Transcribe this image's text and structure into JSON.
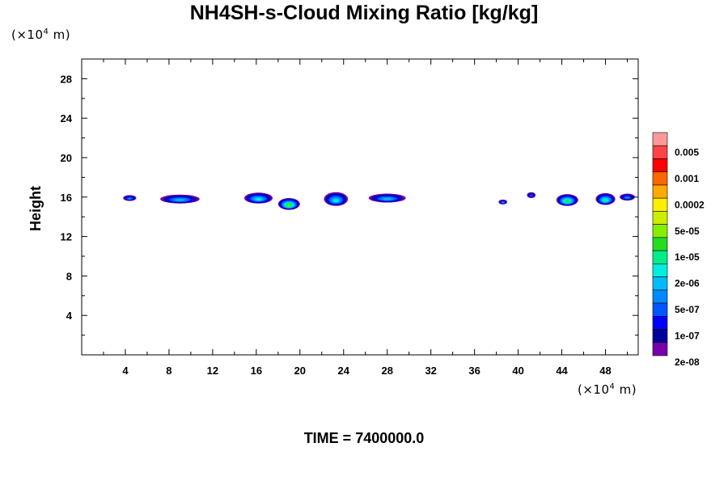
{
  "chart_data": {
    "type": "contour",
    "title": "NH4SH-s-Cloud Mixing Ratio [kg/kg]",
    "ylabel": "Height",
    "y_unit": {
      "prefix": "(×10",
      "exp": "4",
      "suffix": " m)"
    },
    "x_unit": {
      "prefix": "(×10",
      "exp": "4",
      "suffix": " m)"
    },
    "xlim": [
      0,
      51
    ],
    "ylim": [
      0,
      30
    ],
    "x_ticks": [
      4,
      8,
      12,
      16,
      20,
      24,
      28,
      32,
      36,
      40,
      44,
      48
    ],
    "y_ticks": [
      4,
      8,
      12,
      16,
      20,
      24,
      28
    ],
    "grid": false,
    "legend": {
      "position": "right",
      "labels": [
        "0.005",
        "0.001",
        "0.0002",
        "5e-05",
        "1e-05",
        "2e-06",
        "5e-07",
        "1e-07",
        "2e-08"
      ],
      "colors": [
        "#ff9999",
        "#ff4444",
        "#ff0000",
        "#ff6600",
        "#ffaa00",
        "#ffee00",
        "#ccee00",
        "#88ee00",
        "#22dd22",
        "#00ee88",
        "#00eedd",
        "#00bbff",
        "#0088ff",
        "#0055ff",
        "#0000ff",
        "#000099",
        "#7700aa"
      ]
    },
    "cloud_patches": [
      {
        "x": 4.4,
        "y": 15.9,
        "w": 1.2,
        "h": 0.6,
        "max_color": "#0088ff"
      },
      {
        "x": 9.0,
        "y": 15.8,
        "w": 3.6,
        "h": 0.9,
        "max_color": "#00bbff"
      },
      {
        "x": 16.2,
        "y": 15.9,
        "w": 2.6,
        "h": 1.1,
        "max_color": "#00eedd"
      },
      {
        "x": 19.0,
        "y": 15.3,
        "w": 2.0,
        "h": 1.2,
        "max_color": "#88ee00"
      },
      {
        "x": 23.3,
        "y": 15.8,
        "w": 2.2,
        "h": 1.4,
        "max_color": "#00eedd"
      },
      {
        "x": 28.0,
        "y": 15.9,
        "w": 3.4,
        "h": 0.9,
        "max_color": "#00bbff"
      },
      {
        "x": 38.6,
        "y": 15.5,
        "w": 0.8,
        "h": 0.5,
        "max_color": "#0088ff"
      },
      {
        "x": 41.2,
        "y": 16.2,
        "w": 0.8,
        "h": 0.6,
        "max_color": "#0055ff"
      },
      {
        "x": 44.5,
        "y": 15.7,
        "w": 2.0,
        "h": 1.2,
        "max_color": "#22dd22"
      },
      {
        "x": 48.0,
        "y": 15.8,
        "w": 1.8,
        "h": 1.2,
        "max_color": "#00ee88"
      },
      {
        "x": 50.0,
        "y": 16.0,
        "w": 1.4,
        "h": 0.7,
        "max_color": "#0088ff"
      }
    ]
  },
  "time_label": "TIME = 7400000.0"
}
